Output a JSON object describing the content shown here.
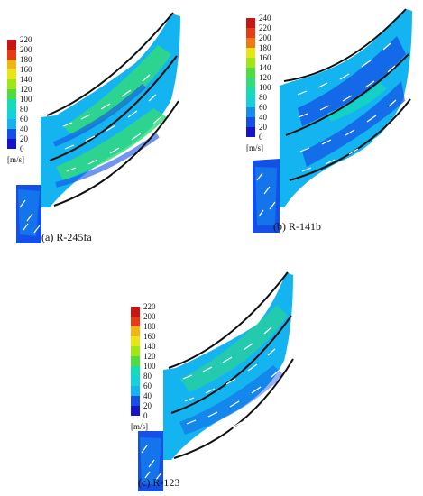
{
  "colormap": [
    "#1414c8",
    "#1450e6",
    "#148cf0",
    "#14b4f0",
    "#14d2dc",
    "#14dcb4",
    "#32dc78",
    "#50dc3c",
    "#a0e614",
    "#e6e614",
    "#f0b414",
    "#f07814",
    "#e63c14",
    "#c81414"
  ],
  "panels": [
    {
      "id": "a",
      "caption": "(a) R-245fa",
      "unit": "[m/s]",
      "ticks": [
        "220",
        "200",
        "180",
        "160",
        "140",
        "120",
        "100",
        "80",
        "60",
        "40",
        "20",
        "0"
      ]
    },
    {
      "id": "b",
      "caption": "(b) R-141b",
      "unit": "[m/s]",
      "ticks": [
        "240",
        "220",
        "200",
        "180",
        "160",
        "140",
        "120",
        "100",
        "80",
        "60",
        "40",
        "20",
        "0"
      ]
    },
    {
      "id": "c",
      "caption": "(c) R-123",
      "unit": "[m/s]",
      "ticks": [
        "220",
        "200",
        "180",
        "160",
        "140",
        "120",
        "100",
        "80",
        "60",
        "40",
        "20",
        "0"
      ]
    }
  ]
}
